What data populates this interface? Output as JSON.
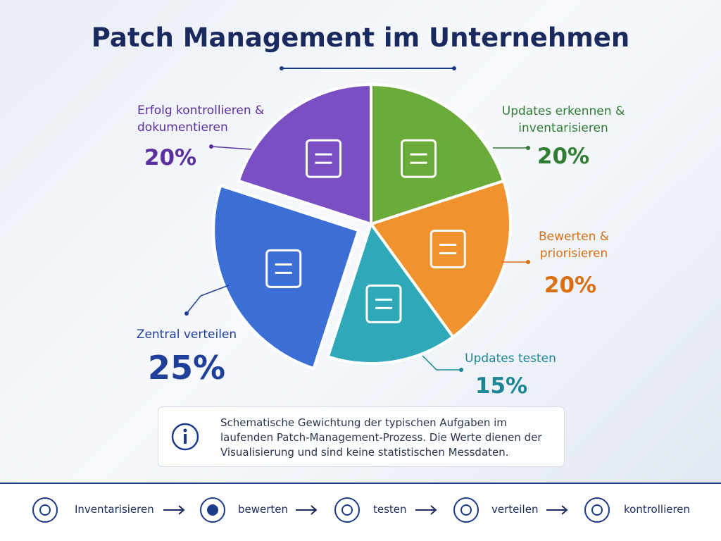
{
  "chart_data": {
    "type": "pie",
    "title": "Patch Management im Unternehmen",
    "categories": [
      "Updates erkennen & inventarisieren",
      "Bewerten & priorisieren",
      "Updates testen",
      "Zentral verteilen",
      "Erfolg kontrollieren & dokumentieren"
    ],
    "values": [
      20,
      20,
      15,
      25,
      20
    ],
    "value_labels": [
      "20%",
      "20%",
      "15%",
      "25%",
      "20%"
    ],
    "colors": [
      "#6aab3a",
      "#f0922e",
      "#2fa9b8",
      "#3b6fd6",
      "#7a4fc4"
    ],
    "annotation": "Schematische Gewichtung der typischen Aufgaben im laufenden Patch-Management-Prozess. Die Werte dienen der Visualisierung und sind keine statistischen Messdaten."
  },
  "process_steps": [
    "Inventarisieren",
    "bewerten",
    "testen",
    "verteilen",
    "kontrollieren"
  ]
}
